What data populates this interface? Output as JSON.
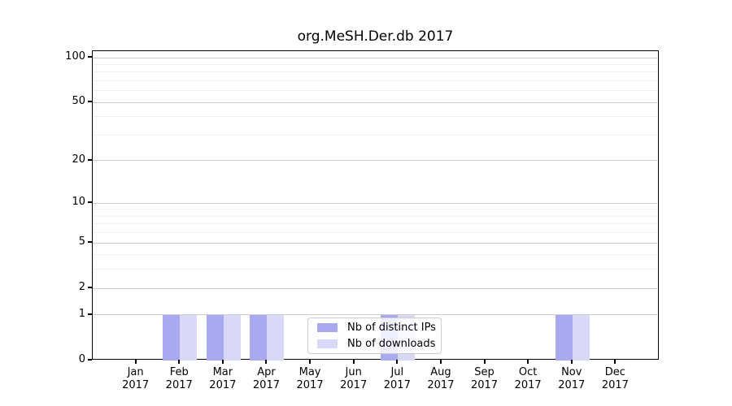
{
  "chart_data": {
    "type": "bar",
    "title": "org.MeSH.Der.db 2017",
    "x_categories": [
      "Jan",
      "Feb",
      "Mar",
      "Apr",
      "May",
      "Jun",
      "Jul",
      "Aug",
      "Sep",
      "Oct",
      "Nov",
      "Dec"
    ],
    "x_year": "2017",
    "series": [
      {
        "name": "Nb of distinct IPs",
        "color": "#a9a9f0",
        "values": [
          0,
          1,
          1,
          1,
          0,
          0,
          1,
          0,
          0,
          0,
          1,
          0
        ]
      },
      {
        "name": "Nb of downloads",
        "color": "#d9d9f7",
        "values": [
          0,
          1,
          1,
          1,
          0,
          0,
          1,
          0,
          0,
          0,
          1,
          0
        ]
      }
    ],
    "y_axis": {
      "scale": "log1p",
      "labeled_ticks": [
        0,
        1,
        2,
        5,
        10,
        20,
        50,
        100
      ],
      "minor_gridlines": [
        3,
        4,
        6,
        7,
        8,
        9,
        30,
        40,
        60,
        70,
        80,
        90
      ],
      "range": [
        0,
        100
      ]
    },
    "legend": {
      "position": "lower center",
      "entries": [
        "Nb of distinct IPs",
        "Nb of downloads"
      ]
    },
    "grid": true,
    "colors": {
      "bar_distinct_ips": "#a9a9f0",
      "bar_downloads": "#d9d9f7",
      "major_grid": "#cdcdcd",
      "minor_grid": "#f0f0f0",
      "axis": "#000000",
      "legend_border": "#cccccc",
      "background": "#ffffff"
    }
  }
}
